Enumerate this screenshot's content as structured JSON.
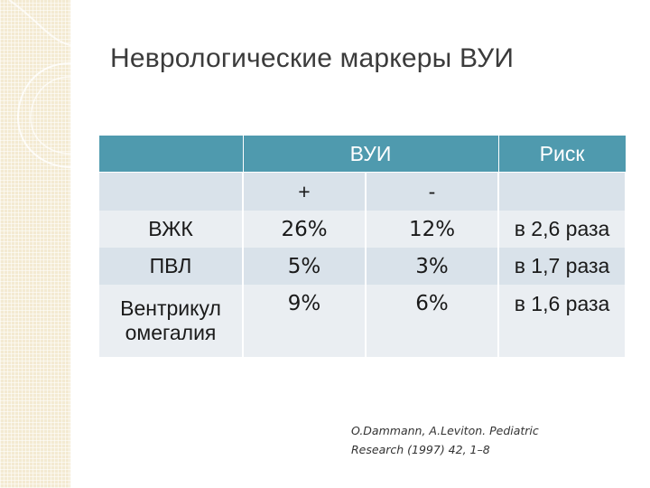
{
  "slide": {
    "title": "Неврологические маркеры ВУИ"
  },
  "table": {
    "headers": {
      "group": "ВУИ",
      "risk": "Риск"
    },
    "subheaders": {
      "plus": "+",
      "minus": "-"
    },
    "rows": [
      {
        "name": "ВЖК",
        "plus": "26%",
        "minus": "12%",
        "risk": "в 2,6 раза"
      },
      {
        "name": "ПВЛ",
        "plus": "5%",
        "minus": "3%",
        "risk": "в 1,7 раза"
      },
      {
        "name_line1": "Вентрикул",
        "name_line2": "омегалия",
        "plus": "9%",
        "minus": "6%",
        "risk": "в 1,6 раза"
      }
    ]
  },
  "citation": {
    "line1": "O.Dammann, A.Leviton. Pediatric",
    "line2": "Research (1997) 42, 1–8"
  },
  "colors": {
    "header": "#4f9aae",
    "row_dark": "#d9e2ea",
    "row_light": "#eaeef2",
    "side_band": "#f3ead2"
  }
}
